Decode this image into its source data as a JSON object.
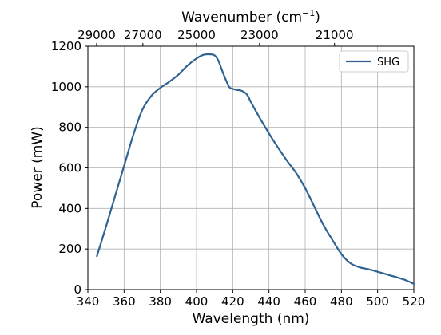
{
  "chart_data": {
    "type": "line",
    "xlabel": "Wavelength (nm)",
    "ylabel": "Power (mW)",
    "top_xlabel_main": "Wavenumber (cm",
    "top_xlabel_sup": "−1",
    "top_xlabel_close": ")",
    "xlim": [
      340,
      520
    ],
    "ylim": [
      0,
      1200
    ],
    "xticks": [
      340,
      360,
      380,
      400,
      420,
      440,
      460,
      480,
      500,
      520
    ],
    "yticks": [
      0,
      200,
      400,
      600,
      800,
      1000,
      1200
    ],
    "top_ticks": [
      29000,
      27000,
      25000,
      23000,
      21000
    ],
    "grid": true,
    "legend_position": "top-right",
    "line_color": "#2f6391",
    "series": [
      {
        "name": "SHG",
        "x": [
          345,
          350,
          355,
          360,
          365,
          370,
          375,
          380,
          385,
          390,
          395,
          400,
          403,
          405,
          408,
          410,
          412,
          415,
          418,
          420,
          422,
          425,
          428,
          430,
          435,
          440,
          445,
          450,
          455,
          460,
          465,
          470,
          475,
          480,
          485,
          490,
          495,
          500,
          505,
          510,
          515,
          520
        ],
        "y": [
          165,
          310,
          460,
          610,
          760,
          885,
          955,
          995,
          1025,
          1060,
          1105,
          1140,
          1155,
          1160,
          1160,
          1155,
          1130,
          1060,
          1000,
          990,
          985,
          980,
          960,
          925,
          845,
          770,
          700,
          635,
          575,
          500,
          410,
          320,
          245,
          175,
          130,
          110,
          100,
          88,
          75,
          62,
          48,
          28
        ]
      }
    ]
  }
}
